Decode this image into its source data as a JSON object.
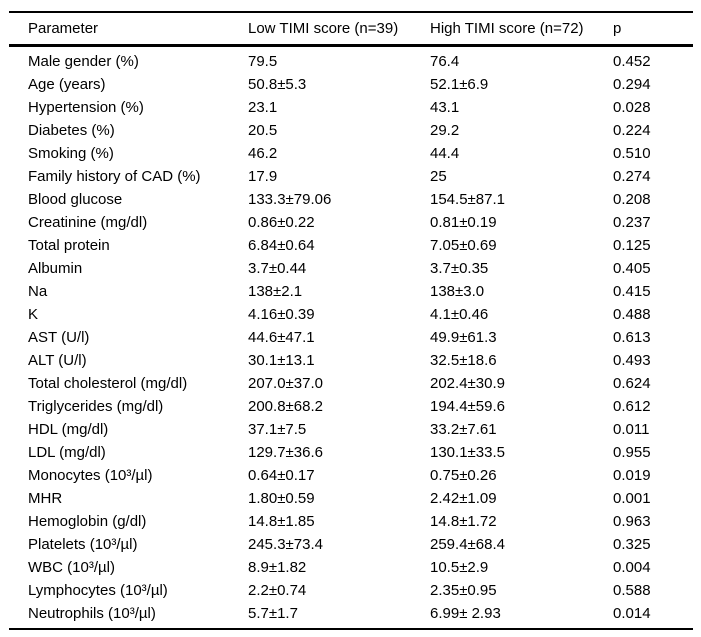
{
  "table": {
    "columns": [
      "Parameter",
      "Low TIMI score (n=39)",
      "High TIMI score (n=72)",
      "p"
    ],
    "column_keys": [
      "parameter",
      "low-timi-score",
      "high-timi-score",
      "p-value"
    ],
    "rows": [
      [
        "Male gender (%)",
        "79.5",
        "76.4",
        "0.452"
      ],
      [
        "Age (years)",
        "50.8±5.3",
        "52.1±6.9",
        "0.294"
      ],
      [
        "Hypertension (%)",
        "23.1",
        "43.1",
        "0.028"
      ],
      [
        "Diabetes (%)",
        "20.5",
        "29.2",
        "0.224"
      ],
      [
        "Smoking (%)",
        "46.2",
        "44.4",
        "0.510"
      ],
      [
        "Family history of CAD (%)",
        "17.9",
        "25",
        "0.274"
      ],
      [
        "Blood glucose",
        "133.3±79.06",
        "154.5±87.1",
        "0.208"
      ],
      [
        "Creatinine (mg/dl)",
        "0.86±0.22",
        "0.81±0.19",
        "0.237"
      ],
      [
        "Total protein",
        "6.84±0.64",
        "7.05±0.69",
        "0.125"
      ],
      [
        "Albumin",
        "3.7±0.44",
        "3.7±0.35",
        "0.405"
      ],
      [
        "Na",
        "138±2.1",
        "138±3.0",
        "0.415"
      ],
      [
        "K",
        "4.16±0.39",
        "4.1±0.46",
        "0.488"
      ],
      [
        "AST (U/l)",
        "44.6±47.1",
        "49.9±61.3",
        "0.613"
      ],
      [
        "ALT (U/l)",
        "30.1±13.1",
        "32.5±18.6",
        "0.493"
      ],
      [
        "Total cholesterol (mg/dl)",
        "207.0±37.0",
        "202.4±30.9",
        "0.624"
      ],
      [
        "Triglycerides (mg/dl)",
        "200.8±68.2",
        "194.4±59.6",
        "0.612"
      ],
      [
        "HDL (mg/dl)",
        "37.1±7.5",
        "33.2±7.61",
        "0.011"
      ],
      [
        "LDL (mg/dl)",
        "129.7±36.6",
        "130.1±33.5",
        "0.955"
      ],
      [
        "Monocytes (10³/µl)",
        "0.64±0.17",
        "0.75±0.26",
        "0.019"
      ],
      [
        "MHR",
        "1.80±0.59",
        "2.42±1.09",
        "0.001"
      ],
      [
        "Hemoglobin (g/dl)",
        "14.8±1.85",
        "14.8±1.72",
        "0.963"
      ],
      [
        "Platelets (10³/µl)",
        "245.3±73.4",
        "259.4±68.4",
        "0.325"
      ],
      [
        "WBC (10³/µl)",
        "8.9±1.82",
        "10.5±2.9",
        "0.004"
      ],
      [
        "Lymphocytes (10³/µl)",
        "2.2±0.74",
        "2.35±0.95",
        "0.588"
      ],
      [
        "Neutrophils (10³/µl)",
        "5.7±1.7",
        "6.99± 2.93",
        "0.014"
      ]
    ]
  }
}
